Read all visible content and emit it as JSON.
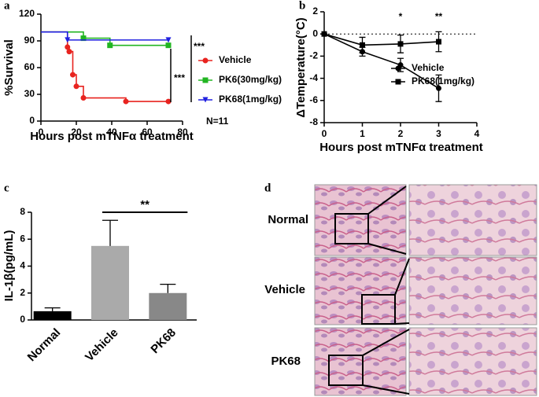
{
  "chart_data": [
    {
      "type": "line",
      "panel": "a",
      "step": true,
      "y_label": "%Survival",
      "x_label": "Hours post mTNFα treatment",
      "xlim": [
        0,
        80
      ],
      "xticks": [
        0,
        20,
        40,
        60,
        80
      ],
      "ylim": [
        0,
        120
      ],
      "yticks": [
        0,
        30,
        60,
        90,
        120
      ],
      "series": [
        {
          "name": "Vehicle",
          "color": "#e8231f",
          "marker": "circle",
          "x": [
            0,
            15,
            16,
            18,
            20,
            24,
            48,
            72
          ],
          "values": [
            100,
            83,
            78,
            52,
            39,
            26,
            22,
            22
          ]
        },
        {
          "name": "PK6(30mg/kg)",
          "color": "#22b522",
          "marker": "square",
          "x": [
            0,
            24,
            39,
            72
          ],
          "values": [
            100,
            93,
            85,
            85
          ]
        },
        {
          "name": "PK68(1mg/kg)",
          "color": "#2020e0",
          "marker": "triangle",
          "x": [
            0,
            15,
            72
          ],
          "values": [
            100,
            91,
            91
          ]
        }
      ],
      "annotations": [
        "***",
        "***",
        "N=11"
      ]
    },
    {
      "type": "line",
      "panel": "b",
      "y_label": "ΔTemperature(°C)",
      "x_label": "Hours post mTNFα treatment",
      "xlim": [
        0,
        4
      ],
      "xticks": [
        0,
        1,
        2,
        3,
        4
      ],
      "ylim": [
        -8,
        2
      ],
      "yticks": [
        -8,
        -6,
        -4,
        -2,
        0,
        2
      ],
      "hline": 0,
      "series": [
        {
          "name": "Vehicle",
          "color": "#000000",
          "marker": "circle",
          "x": [
            0,
            1,
            2,
            3
          ],
          "values": [
            0,
            -1.6,
            -2.8,
            -4.9
          ],
          "errors": [
            0,
            0.4,
            0.6,
            1.2
          ]
        },
        {
          "name": "PK68(1mg/kg)",
          "color": "#000000",
          "marker": "square",
          "x": [
            0,
            1,
            2,
            3
          ],
          "values": [
            0,
            -1.0,
            -0.9,
            -0.7
          ],
          "errors": [
            0,
            0.7,
            0.8,
            0.9
          ]
        }
      ],
      "annotations": [
        "*",
        "**"
      ]
    },
    {
      "type": "bar",
      "panel": "c",
      "y_label": "IL-1β(pg/mL)",
      "categories": [
        "Normal",
        "Vehicle",
        "PK68"
      ],
      "values": [
        0.65,
        5.5,
        2.0
      ],
      "errors": [
        0.25,
        1.9,
        0.65
      ],
      "colors": [
        "#000000",
        "#aaaaaa",
        "#888888"
      ],
      "ylim": [
        0,
        8
      ],
      "yticks": [
        0,
        2,
        4,
        6,
        8
      ],
      "annotations": [
        "**"
      ]
    }
  ],
  "panel_d": {
    "panel": "d",
    "rows": [
      "Normal",
      "Vehicle",
      "PK68"
    ]
  }
}
